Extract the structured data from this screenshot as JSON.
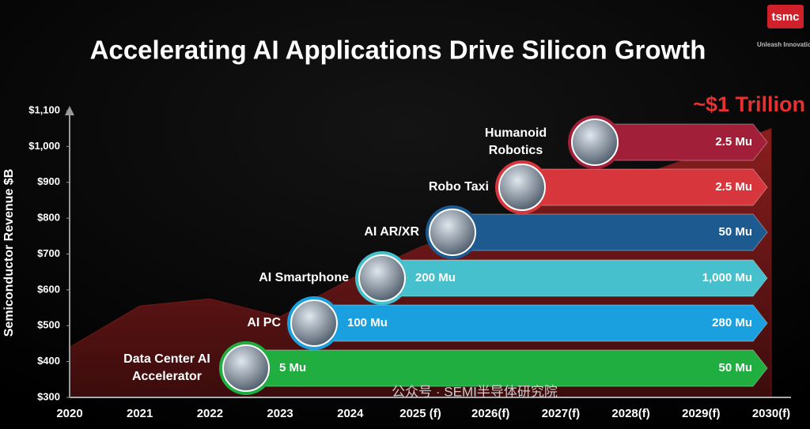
{
  "title": "Accelerating AI Applications Drive Silicon Growth",
  "logo": {
    "name": "tsmc",
    "tagline": "Unleash Innovation"
  },
  "watermark": "公众号 · SEMI半导体研究院",
  "chart_data": {
    "type": "area",
    "ylabel": "Semiconductor Revenue $B",
    "annotation": "~$1 Trillion",
    "categories": [
      "2020",
      "2021",
      "2022",
      "2023",
      "2024",
      "2025 (f)",
      "2026(f)",
      "2027(f)",
      "2028(f)",
      "2029(f)",
      "2030(f)"
    ],
    "series": [
      {
        "name": "Semiconductor Revenue",
        "color": "#6e1818",
        "values": [
          440,
          555,
          575,
          525,
          630,
          720,
          790,
          850,
          910,
          980,
          1050
        ]
      }
    ],
    "ylim": [
      300,
      1100
    ],
    "yticks": [
      {
        "value": 300,
        "label": "$300"
      },
      {
        "value": 400,
        "label": "$400"
      },
      {
        "value": 500,
        "label": "$500"
      },
      {
        "value": 600,
        "label": "$600"
      },
      {
        "value": 700,
        "label": "$700"
      },
      {
        "value": 800,
        "label": "$800"
      },
      {
        "value": 900,
        "label": "$900"
      },
      {
        "value": 1000,
        "label": "$1,000"
      },
      {
        "value": 1100,
        "label": "$1,100"
      }
    ]
  },
  "applications": [
    {
      "label_lines": [
        "Data Center AI",
        "Accelerator"
      ],
      "start_text": "5 Mu",
      "end_text": "50 Mu",
      "color": "#1fae3f"
    },
    {
      "label_lines": [
        "AI PC"
      ],
      "start_text": "100 Mu",
      "end_text": "280 Mu",
      "color": "#1aa0de"
    },
    {
      "label_lines": [
        "AI Smartphone"
      ],
      "start_text": "200 Mu",
      "end_text": "1,000 Mu",
      "color": "#45c0cc"
    },
    {
      "label_lines": [
        "AI AR/XR"
      ],
      "end_text": "50 Mu",
      "color": "#1c5a90"
    },
    {
      "label_lines": [
        "Robo Taxi"
      ],
      "end_text": "2.5 Mu",
      "color": "#d8363d"
    },
    {
      "label_lines": [
        "Humanoid",
        "Robotics"
      ],
      "end_text": "2.5 Mu",
      "color": "#a21f3a"
    }
  ]
}
